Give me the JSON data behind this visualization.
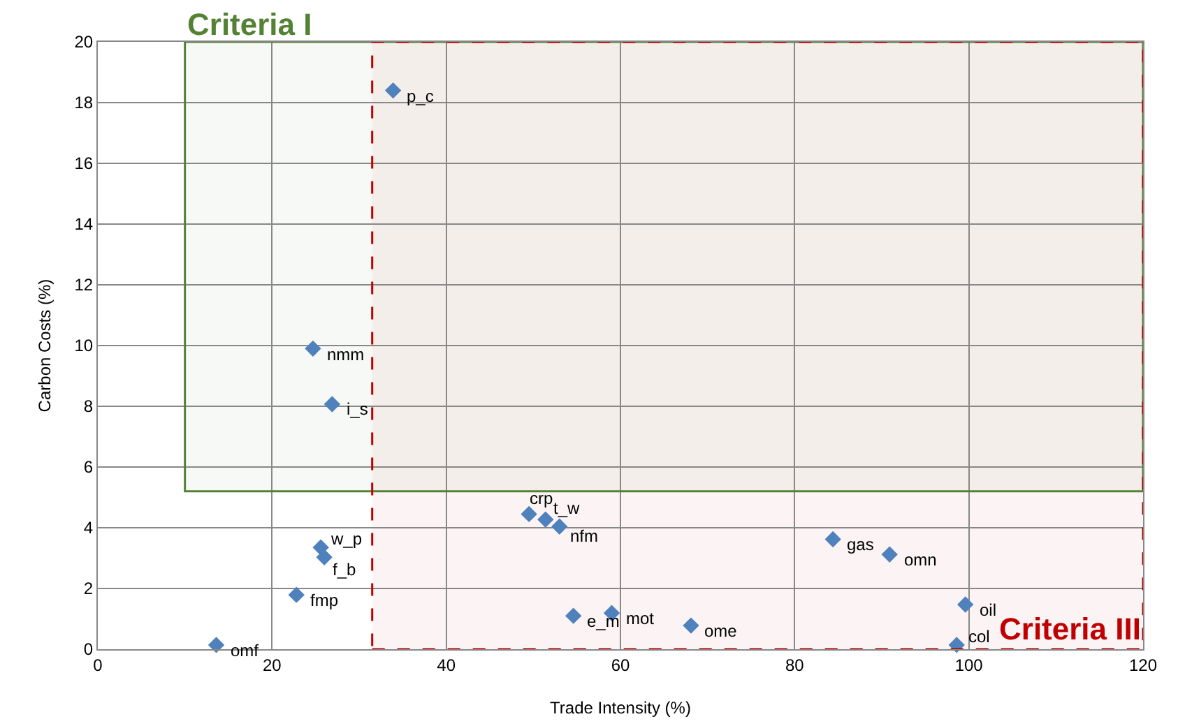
{
  "chart_data": {
    "type": "scatter",
    "xlabel": "Trade Intensity (%)",
    "ylabel": "Carbon Costs (%)",
    "x": [
      33.9,
      24.7,
      26.9,
      49.5,
      51.4,
      53.0,
      25.6,
      26.0,
      22.8,
      13.6,
      54.6,
      59.0,
      68.1,
      84.4,
      90.9,
      99.6,
      98.6
    ],
    "series": [
      {
        "color": "#4f81bd",
        "values": [
          18.4,
          9.9,
          8.07,
          4.45,
          4.27,
          4.04,
          3.35,
          3.03,
          1.79,
          0.14,
          1.1,
          1.19,
          0.78,
          3.62,
          3.12,
          1.47,
          0.14
        ]
      }
    ],
    "annotations": [
      {
        "text": "p_c",
        "x": 33.9,
        "y": 18.4
      },
      {
        "text": "nmm",
        "x": 24.7,
        "y": 9.9
      },
      {
        "text": "i_s",
        "x": 26.9,
        "y": 8.07
      },
      {
        "text": "crp",
        "x": 49.5,
        "y": 4.45
      },
      {
        "text": "t_w",
        "x": 51.4,
        "y": 4.27
      },
      {
        "text": "nfm",
        "x": 53.0,
        "y": 4.04
      },
      {
        "text": "w_p",
        "x": 25.6,
        "y": 3.35
      },
      {
        "text": "f_b",
        "x": 26.0,
        "y": 3.03
      },
      {
        "text": "fmp",
        "x": 22.8,
        "y": 1.79
      },
      {
        "text": "omf",
        "x": 13.6,
        "y": 0.14
      },
      {
        "text": "e_m",
        "x": 54.6,
        "y": 1.1
      },
      {
        "text": "mot",
        "x": 59.0,
        "y": 1.19
      },
      {
        "text": "ome",
        "x": 68.1,
        "y": 0.78
      },
      {
        "text": "gas",
        "x": 84.4,
        "y": 3.62
      },
      {
        "text": "omn",
        "x": 90.9,
        "y": 3.12
      },
      {
        "text": "oil",
        "x": 99.6,
        "y": 1.47
      },
      {
        "text": "col",
        "x": 98.6,
        "y": 0.14
      }
    ],
    "bands": [
      {
        "axis": "y",
        "from": 5.2,
        "to": 20,
        "label": "Criteria I",
        "color": "#548235"
      },
      {
        "axis": "x",
        "from": 31.5,
        "to": 120,
        "label": "Criteria III",
        "color": "#c00000"
      }
    ],
    "xlim": [
      0,
      120
    ],
    "xticks": [
      0,
      20,
      40,
      60,
      80,
      100,
      120
    ],
    "ylim": [
      0,
      20
    ],
    "yticks": [
      0,
      2,
      4,
      6,
      8,
      10,
      12,
      14,
      16,
      18,
      20
    ],
    "grid": true,
    "marker": "diamond"
  }
}
